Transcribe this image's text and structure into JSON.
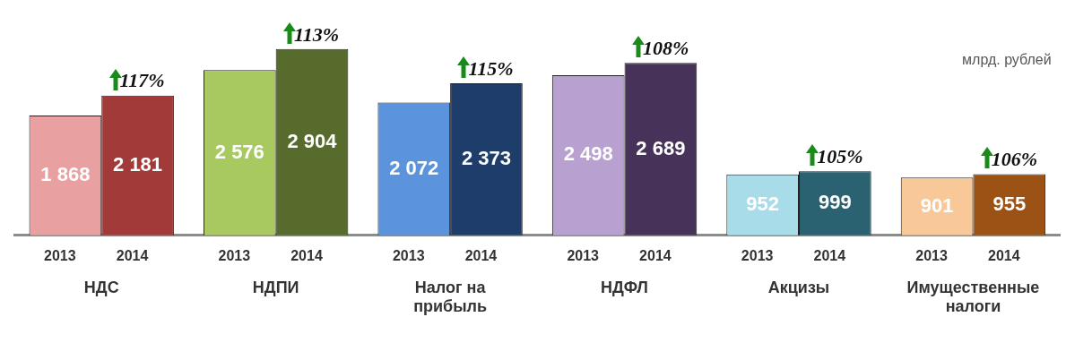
{
  "chart_data": {
    "type": "bar",
    "categories": [
      "НДС",
      "НДПИ",
      "Налог на прибыль",
      "НДФЛ",
      "Акцизы",
      "Имущественные налоги"
    ],
    "series": [
      {
        "name": "2013",
        "colors": [
          "#e8a0a0",
          "#a8c860",
          "#5b94dc",
          "#b8a0d0",
          "#a8dce8",
          "#f8c898"
        ],
        "values": [
          1868,
          2576,
          2072,
          2498,
          952,
          901
        ],
        "value_labels": [
          "1 868",
          "2 576",
          "2 072",
          "2 498",
          "952",
          "901"
        ]
      },
      {
        "name": "2014",
        "colors": [
          "#a33a3a",
          "#566b2c",
          "#1f3d6b",
          "#473259",
          "#2b6272",
          "#9c5214"
        ],
        "values": [
          2181,
          2904,
          2373,
          2689,
          999,
          955
        ],
        "value_labels": [
          "2 181",
          "2 904",
          "2 373",
          "2 689",
          "999",
          "955"
        ]
      }
    ],
    "annotations": [
      {
        "text": "117%",
        "x": "НДС",
        "y": 2181
      },
      {
        "text": "113%",
        "x": "НДПИ",
        "y": 2904
      },
      {
        "text": "115%",
        "x": "Налог на прибыль",
        "y": 2373
      },
      {
        "text": "108%",
        "x": "НДФЛ",
        "y": 2689
      },
      {
        "text": "105%",
        "x": "Акцизы",
        "y": 999
      },
      {
        "text": "106%",
        "x": "Имущественные налоги",
        "y": 955
      },
      "млрд. рублей"
    ],
    "legend": false,
    "grid": false
  }
}
